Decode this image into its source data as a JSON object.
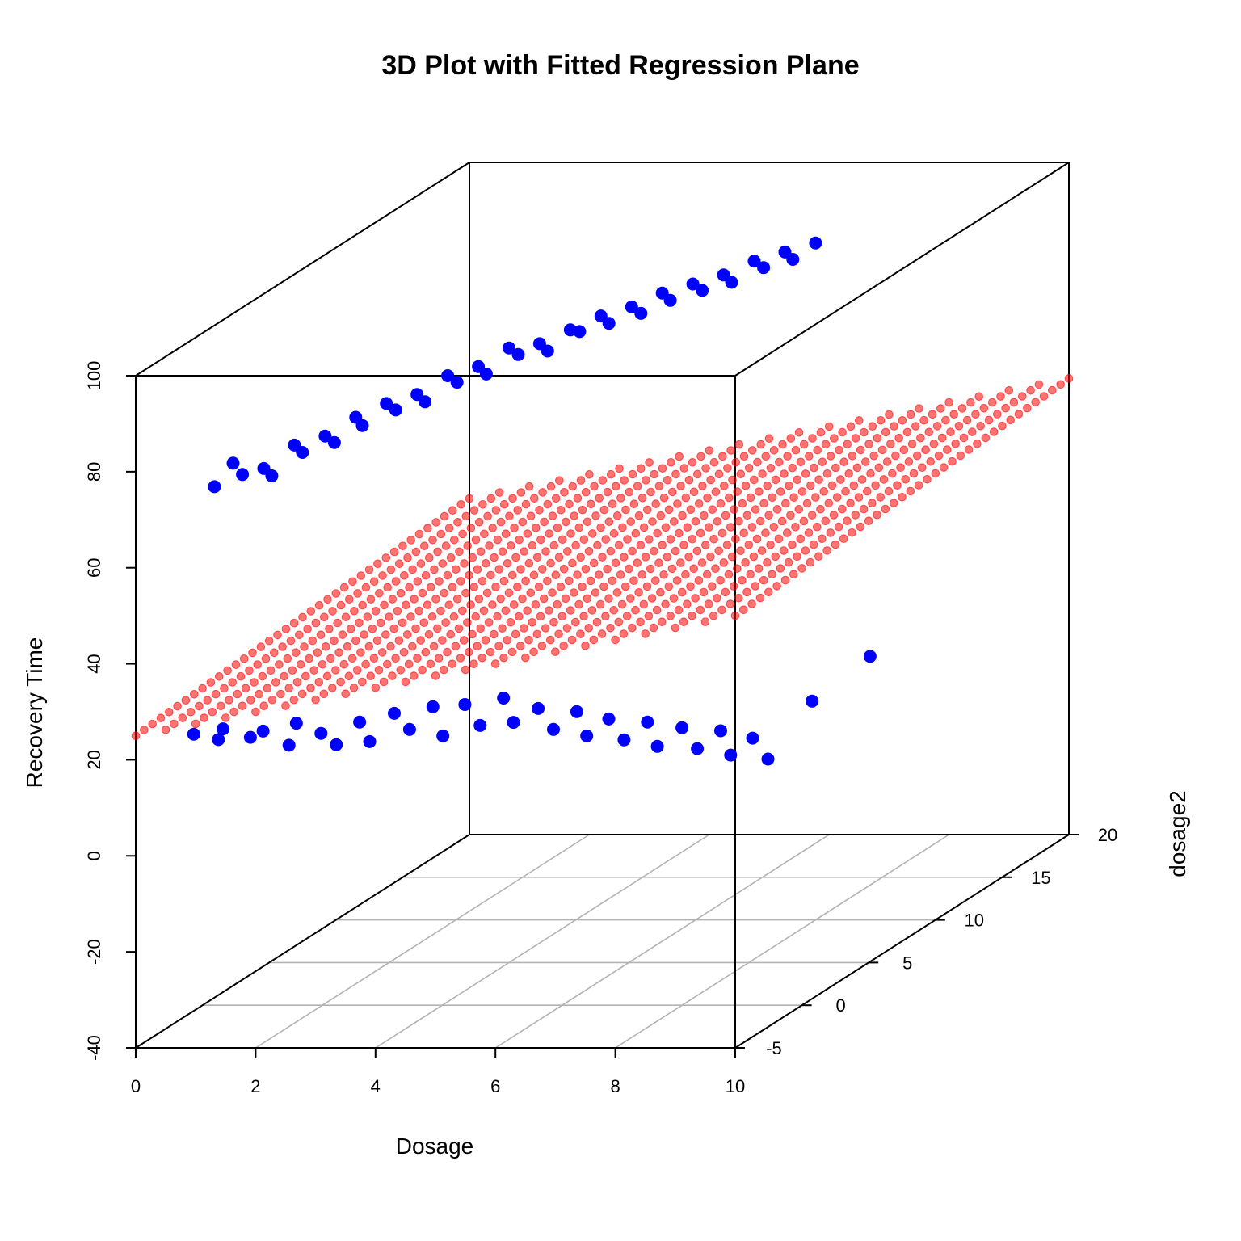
{
  "chart_data": {
    "type": "scatter",
    "title": "3D Plot with Fitted Regression Plane",
    "xlabel": "Dosage",
    "ylabel": "dosage2",
    "zlabel": "Recovery Time",
    "xlim": [
      0,
      10
    ],
    "ylim": [
      -5,
      20
    ],
    "zlim": [
      -40,
      100
    ],
    "x_ticks": [
      "0",
      "2",
      "4",
      "6",
      "8",
      "10"
    ],
    "y_ticks": [
      "-5",
      "0",
      "5",
      "10",
      "15",
      "20"
    ],
    "z_ticks": [
      "-40",
      "-20",
      "0",
      "20",
      "40",
      "60",
      "80",
      "100"
    ],
    "grid": true,
    "colors": {
      "points": "#0000ff",
      "plane": "#ff0000"
    },
    "series": [
      {
        "marker": "filled-circle",
        "color": "#0000ff",
        "points": [
          [
            0.2,
            0.0,
            68
          ],
          [
            0.4,
            0.5,
            72
          ],
          [
            0.6,
            0.3,
            70
          ],
          [
            0.8,
            1.0,
            70
          ],
          [
            1.0,
            0.7,
            69
          ],
          [
            1.2,
            1.5,
            74
          ],
          [
            1.4,
            1.2,
            73
          ],
          [
            1.6,
            2.0,
            75
          ],
          [
            1.8,
            1.8,
            74
          ],
          [
            2.0,
            2.5,
            78
          ],
          [
            2.2,
            2.1,
            77
          ],
          [
            2.4,
            3.0,
            80
          ],
          [
            2.6,
            2.8,
            79
          ],
          [
            2.8,
            3.5,
            81
          ],
          [
            3.0,
            3.2,
            80
          ],
          [
            3.2,
            4.0,
            84
          ],
          [
            3.4,
            3.8,
            83
          ],
          [
            3.6,
            4.5,
            85
          ],
          [
            3.8,
            4.2,
            84
          ],
          [
            4.0,
            5.0,
            88
          ],
          [
            4.2,
            4.8,
            87
          ],
          [
            4.4,
            5.5,
            88
          ],
          [
            4.6,
            5.2,
            87
          ],
          [
            4.8,
            6.0,
            90
          ],
          [
            5.0,
            5.8,
            90
          ],
          [
            5.2,
            6.5,
            92
          ],
          [
            5.4,
            6.2,
            91
          ],
          [
            5.6,
            7.0,
            93
          ],
          [
            5.8,
            6.8,
            92
          ],
          [
            6.0,
            7.5,
            95
          ],
          [
            6.2,
            7.2,
            94
          ],
          [
            6.4,
            8.0,
            96
          ],
          [
            6.6,
            7.8,
            95
          ],
          [
            6.8,
            8.5,
            97
          ],
          [
            7.0,
            8.2,
            96
          ],
          [
            7.2,
            9.0,
            99
          ],
          [
            7.4,
            8.8,
            98
          ],
          [
            7.6,
            9.5,
            100
          ],
          [
            7.8,
            9.2,
            99
          ],
          [
            8.0,
            10.0,
            101
          ],
          [
            0.3,
            -2.0,
            20
          ],
          [
            0.6,
            -1.5,
            18
          ],
          [
            0.9,
            -2.5,
            22
          ],
          [
            1.2,
            -1.8,
            19
          ],
          [
            1.5,
            -2.2,
            21
          ],
          [
            1.8,
            -1.6,
            17
          ],
          [
            2.1,
            -2.4,
            23
          ],
          [
            2.4,
            -1.9,
            20
          ],
          [
            2.7,
            -2.1,
            18
          ],
          [
            3.0,
            -1.7,
            22
          ],
          [
            3.3,
            -2.3,
            19
          ],
          [
            3.6,
            -1.8,
            24
          ],
          [
            3.9,
            -2.0,
            21
          ],
          [
            4.2,
            -1.6,
            25
          ],
          [
            4.5,
            -2.2,
            20
          ],
          [
            4.8,
            -1.9,
            26
          ],
          [
            5.1,
            -2.1,
            22
          ],
          [
            5.4,
            -1.7,
            27
          ],
          [
            5.7,
            -2.3,
            23
          ],
          [
            6.0,
            -1.8,
            25
          ],
          [
            6.3,
            -2.0,
            21
          ],
          [
            6.6,
            -1.6,
            24
          ],
          [
            6.9,
            -2.2,
            20
          ],
          [
            7.2,
            -1.9,
            23
          ],
          [
            7.5,
            -2.1,
            19
          ],
          [
            7.8,
            -1.7,
            22
          ],
          [
            8.1,
            -2.3,
            18
          ],
          [
            8.4,
            -1.8,
            21
          ],
          [
            8.7,
            -2.0,
            17
          ],
          [
            9.0,
            -1.6,
            20
          ],
          [
            9.3,
            -2.2,
            16
          ],
          [
            9.6,
            -1.9,
            19
          ],
          [
            9.9,
            -2.1,
            15
          ],
          [
            9.5,
            3.0,
            18
          ],
          [
            9.8,
            6.0,
            22
          ]
        ]
      },
      {
        "marker": "small-circle",
        "color": "#ff0000",
        "plane": {
          "intercept": 40,
          "x_coef": 2.5,
          "y_coef": 0.2
        }
      }
    ]
  }
}
